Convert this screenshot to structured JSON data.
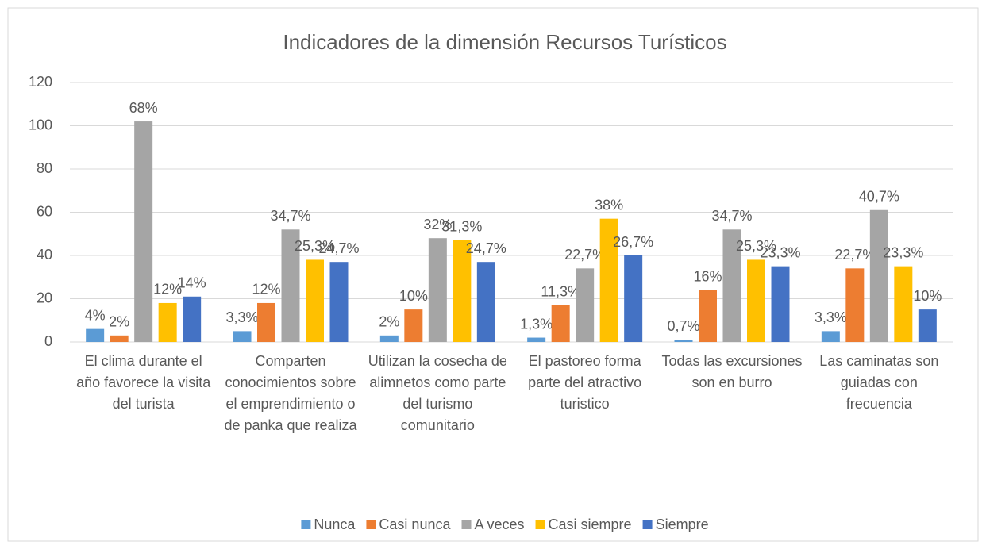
{
  "chart_data": {
    "type": "bar",
    "title": "Indicadores de la dimensión Recursos Turísticos",
    "categories": [
      "El clima durante el año favorece la visita del turista",
      "Comparten conocimientos sobre el emprendimiento o de panka que realiza",
      "Utilizan la cosecha de alimnetos como parte del turismo comunitario",
      "El pastoreo forma parte del atractivo turistico",
      "Todas las excursiones son en burro",
      "Las caminatas son guiadas con frecuencia"
    ],
    "series": [
      {
        "name": "Nunca",
        "color": "#5b9bd5",
        "values": [
          6,
          5,
          3,
          2,
          1,
          5
        ],
        "value_labels": [
          "4%",
          "3,3%",
          "2%",
          "1,3%",
          "0,7%",
          "3,3%"
        ]
      },
      {
        "name": "Casi nunca",
        "color": "#ed7d31",
        "values": [
          3,
          18,
          15,
          17,
          24,
          34
        ],
        "value_labels": [
          "2%",
          "12%",
          "10%",
          "11,3%",
          "16%",
          "22,7%"
        ]
      },
      {
        "name": "A veces",
        "color": "#a5a5a5",
        "values": [
          102,
          52,
          48,
          34,
          52,
          61
        ],
        "value_labels": [
          "68%",
          "34,7%",
          "32%",
          "22,7%",
          "34,7%",
          "40,7%"
        ]
      },
      {
        "name": "Casi siempre",
        "color": "#ffc000",
        "values": [
          18,
          38,
          47,
          57,
          38,
          35
        ],
        "value_labels": [
          "12%",
          "25,3%",
          "31,3%",
          "38%",
          "25,3%",
          "23,3%"
        ]
      },
      {
        "name": "Siempre",
        "color": "#4472c4",
        "values": [
          21,
          37,
          37,
          40,
          35,
          15
        ],
        "value_labels": [
          "14%",
          "24,7%",
          "24,7%",
          "26,7%",
          "23,3%",
          "10%"
        ]
      }
    ],
    "ylim": [
      0,
      120
    ],
    "yticks": [
      0,
      20,
      40,
      60,
      80,
      100,
      120
    ],
    "grid": true,
    "legend": "bottom"
  }
}
